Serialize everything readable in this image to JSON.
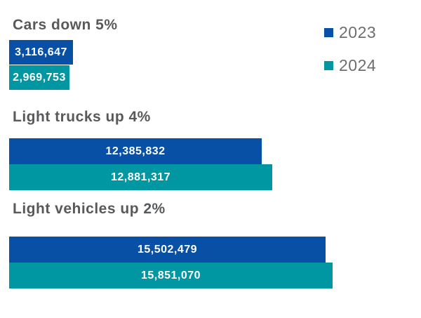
{
  "chart_data": {
    "type": "bar",
    "orientation": "horizontal",
    "grid": false,
    "axes": "none",
    "value_labels": "inside-bars",
    "legend_position": "top-right",
    "series_names": [
      "2023",
      "2024"
    ],
    "xmax": 15851070,
    "groups": [
      {
        "name": "Cars",
        "title": "Cars down 5%",
        "change_pct": -5,
        "bars": [
          {
            "series": "2023",
            "value": 3116647,
            "label": "3,116,647"
          },
          {
            "series": "2024",
            "value": 2969753,
            "label": "2,969,753"
          }
        ]
      },
      {
        "name": "Light trucks",
        "title": "Light trucks up 4%",
        "change_pct": 4,
        "bars": [
          {
            "series": "2023",
            "value": 12385832,
            "label": "12,385,832"
          },
          {
            "series": "2024",
            "value": 12881317,
            "label": "12,881,317"
          }
        ]
      },
      {
        "name": "Light vehicles",
        "title": "Light vehicles up 2%",
        "change_pct": 2,
        "bars": [
          {
            "series": "2023",
            "value": 15502479,
            "label": "15,502,479"
          },
          {
            "series": "2024",
            "value": 15851070,
            "label": "15,851,070"
          }
        ]
      }
    ]
  },
  "legend": {
    "items": [
      {
        "label": "2023",
        "color": "#0750a5"
      },
      {
        "label": "2024",
        "color": "#0097a3"
      }
    ]
  },
  "colors": {
    "series_2023": "#0750a5",
    "series_2024": "#0097a3",
    "title_text": "#58595b",
    "legend_text": "#6d6e71",
    "bar_label_text": "#ffffff",
    "background": "#ffffff"
  }
}
